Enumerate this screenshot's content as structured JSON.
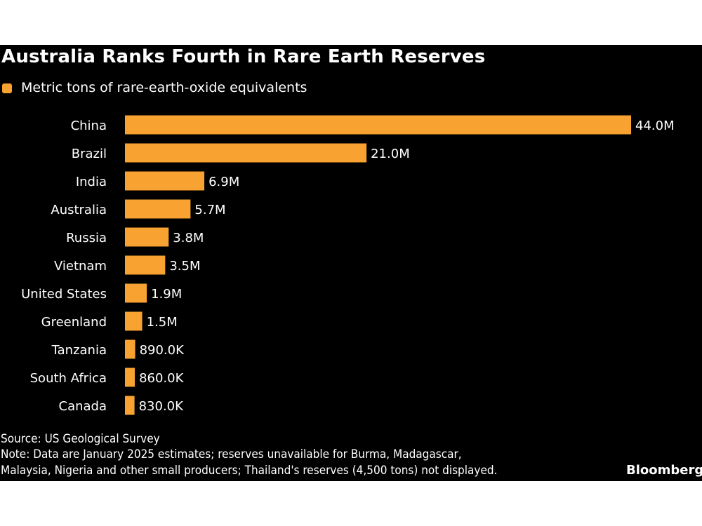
{
  "title": "Australia Ranks Fourth in Rare Earth Reserves",
  "legend": {
    "label": "Metric tons of rare-earth-oxide equivalents",
    "color": "#f7a231"
  },
  "footer": {
    "source": "Source: US Geological Survey",
    "note_line1": "Note: Data are January 2025 estimates; reserves unavailable for Burma, Madagascar,",
    "note_line2": "Malaysia, Nigeria and other small producers; Thailand's reserves (4,500 tons) not displayed.",
    "logo": "Bloomberg"
  },
  "chart_data": {
    "type": "bar",
    "orientation": "horizontal",
    "title": "Australia Ranks Fourth in Rare Earth Reserves",
    "categories": [
      "China",
      "Brazil",
      "India",
      "Australia",
      "Russia",
      "Vietnam",
      "United States",
      "Greenland",
      "Tanzania",
      "South Africa",
      "Canada"
    ],
    "series": [
      {
        "name": "Metric tons of rare-earth-oxide equivalents",
        "values": [
          44000000,
          21000000,
          6900000,
          5700000,
          3800000,
          3500000,
          1900000,
          1500000,
          890000,
          860000,
          830000
        ],
        "data_labels": [
          "44.0M",
          "21.0M",
          "6.9M",
          "5.7M",
          "3.8M",
          "3.5M",
          "1.9M",
          "1.5M",
          "890.0K",
          "860.0K",
          "830.0K"
        ]
      }
    ],
    "xlim": [
      0,
      44000000
    ],
    "grid": false,
    "legend_position": "top-left",
    "colors": {
      "bar": "#f7a231",
      "background": "#000000",
      "text": "#ffffff"
    }
  }
}
